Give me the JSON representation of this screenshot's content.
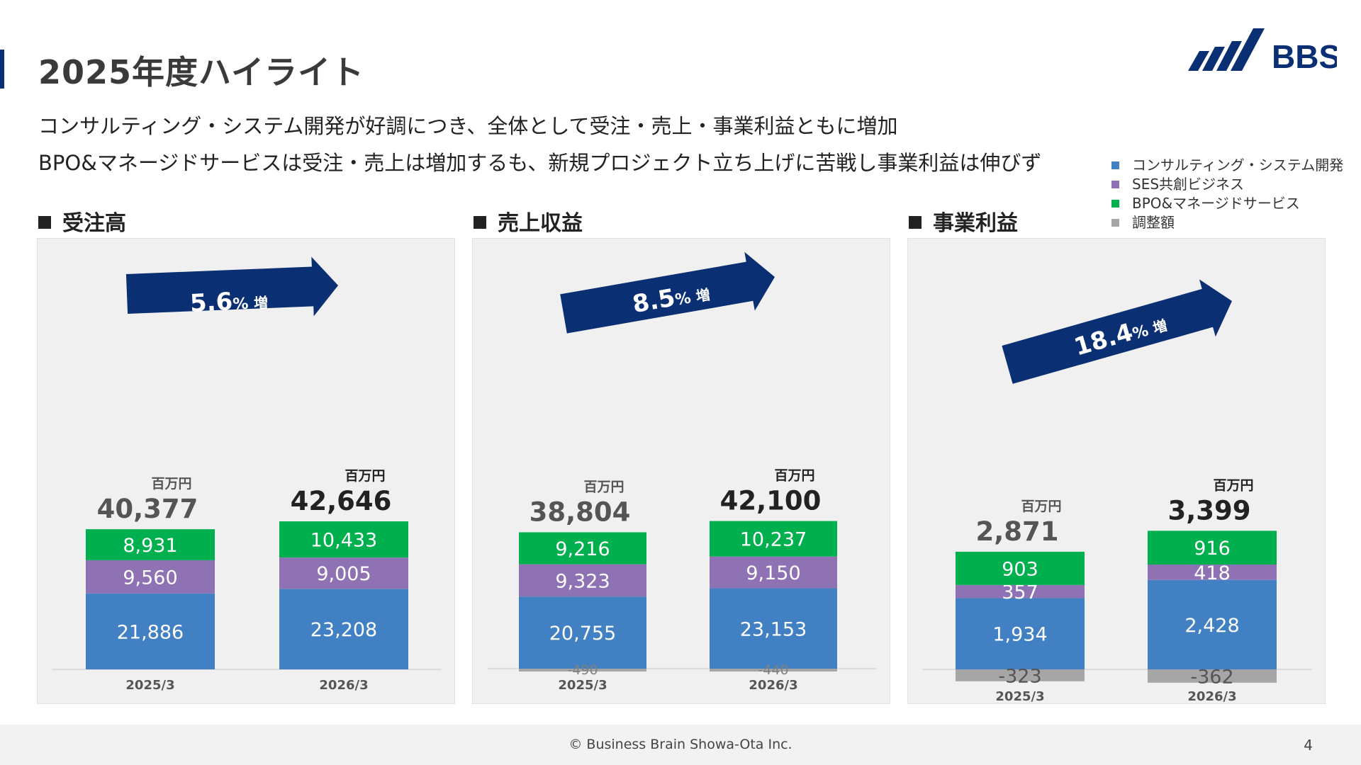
{
  "page": {
    "title": "2025年度ハイライト",
    "summary_line1": "コンサルティング・システム開発が好調につき、全体として受注・売上・事業利益ともに増加",
    "summary_line2": "BPO&マネージドサービスは受注・売上は増加するも、新規プロジェクト立ち上げに苦戦し事業利益は伸びず",
    "logo_text": "BBS"
  },
  "legend": [
    {
      "label": "コンサルティング・システム開発",
      "color": "#4280c4"
    },
    {
      "label": "SES共創ビジネス",
      "color": "#8e72b4"
    },
    {
      "label": "BPO&マネージドサービス",
      "color": "#00b04f"
    },
    {
      "label": "調整額",
      "color": "#a6a6a6"
    }
  ],
  "footer": {
    "copyright": "© Business Brain Showa-Ota Inc.",
    "page_number": "4"
  },
  "chart_data": [
    {
      "type": "bar",
      "stacked": true,
      "title": "受注高",
      "unit_label": "百万円",
      "categories": [
        "2025/3",
        "2026/3"
      ],
      "totals": [
        "40,377",
        "42,646"
      ],
      "growth_value": "5.6",
      "growth_unit": "%",
      "growth_word": "増",
      "series": [
        {
          "name": "コンサルティング・システム開発",
          "values": [
            21886,
            23208
          ],
          "labels": [
            "21,886",
            "23,208"
          ]
        },
        {
          "name": "SES共創ビジネス",
          "values": [
            9560,
            9005
          ],
          "labels": [
            "9,560",
            "9,005"
          ]
        },
        {
          "name": "BPO&マネージドサービス",
          "values": [
            8931,
            10433
          ],
          "labels": [
            "8,931",
            "10,433"
          ]
        }
      ]
    },
    {
      "type": "bar",
      "stacked": true,
      "title": "売上収益",
      "unit_label": "百万円",
      "categories": [
        "2025/3",
        "2026/3"
      ],
      "totals": [
        "38,804",
        "42,100"
      ],
      "growth_value": "8.5",
      "growth_unit": "%",
      "growth_word": "増",
      "series": [
        {
          "name": "コンサルティング・システム開発",
          "values": [
            20755,
            23153
          ],
          "labels": [
            "20,755",
            "23,153"
          ]
        },
        {
          "name": "SES共創ビジネス",
          "values": [
            9323,
            9150
          ],
          "labels": [
            "9,323",
            "9,150"
          ]
        },
        {
          "name": "BPO&マネージドサービス",
          "values": [
            9216,
            10237
          ],
          "labels": [
            "9,216",
            "10,237"
          ]
        },
        {
          "name": "調整額",
          "values": [
            -490,
            -440
          ],
          "labels": [
            "-490",
            "-440"
          ]
        }
      ]
    },
    {
      "type": "bar",
      "stacked": true,
      "title": "事業利益",
      "unit_label": "百万円",
      "categories": [
        "2025/3",
        "2026/3"
      ],
      "totals": [
        "2,871",
        "3,399"
      ],
      "growth_value": "18.4",
      "growth_unit": "%",
      "growth_word": "増",
      "series": [
        {
          "name": "コンサルティング・システム開発",
          "values": [
            1934,
            2428
          ],
          "labels": [
            "1,934",
            "2,428"
          ]
        },
        {
          "name": "SES共創ビジネス",
          "values": [
            357,
            418
          ],
          "labels": [
            "357",
            "418"
          ]
        },
        {
          "name": "BPO&マネージドサービス",
          "values": [
            903,
            916
          ],
          "labels": [
            "903",
            "916"
          ]
        },
        {
          "name": "調整額",
          "values": [
            -323,
            -362
          ],
          "labels": [
            "-323",
            "-362"
          ]
        }
      ]
    }
  ]
}
